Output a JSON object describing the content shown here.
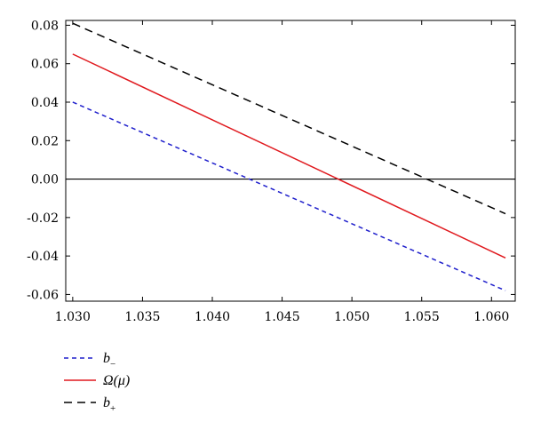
{
  "chart_data": {
    "type": "line",
    "title": "",
    "xlabel": "",
    "ylabel": "",
    "xlim": [
      1.0295,
      1.0617
    ],
    "ylim": [
      -0.0635,
      0.0825
    ],
    "x_ticks": [
      1.03,
      1.035,
      1.04,
      1.045,
      1.05,
      1.055,
      1.06
    ],
    "x_tick_labels": [
      "1.030",
      "1.035",
      "1.040",
      "1.045",
      "1.050",
      "1.055",
      "1.060"
    ],
    "y_ticks": [
      -0.06,
      -0.04,
      -0.02,
      0.0,
      0.02,
      0.04,
      0.06,
      0.08
    ],
    "y_tick_labels": [
      "-0.06",
      "-0.04",
      "-0.02",
      "0.00",
      "0.02",
      "0.04",
      "0.06",
      "0.08"
    ],
    "reference_line_y": 0,
    "grid": false,
    "legend_position": "bottom-left",
    "series": [
      {
        "name": "b",
        "subscript": "−",
        "color": "#1f1fcc",
        "dash": "short-dash",
        "x": [
          1.03,
          1.061
        ],
        "y": [
          0.04,
          -0.058
        ]
      },
      {
        "name": "Ω(μ)",
        "subscript": "",
        "color": "#e0191e",
        "dash": "solid",
        "x": [
          1.03,
          1.061
        ],
        "y": [
          0.065,
          -0.041
        ]
      },
      {
        "name": "b",
        "subscript": "+",
        "color": "#000000",
        "dash": "long-dash",
        "x": [
          1.03,
          1.061
        ],
        "y": [
          0.081,
          -0.018
        ]
      }
    ]
  }
}
